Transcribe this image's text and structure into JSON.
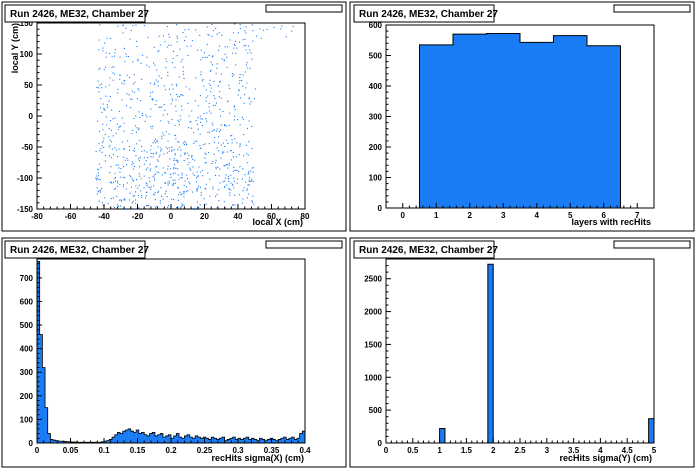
{
  "colors": {
    "fill": "#1a7cf5",
    "stroke": "#000000",
    "background": "#ffffff",
    "scatter": "#1a7cf5"
  },
  "chart_data": [
    {
      "type": "scatter",
      "title": "Run 2426, ME32, Chamber 27",
      "xlabel": "local X (cm)",
      "ylabel": "local Y (cm)",
      "xlim": [
        -80,
        80
      ],
      "ylim": [
        -150,
        150
      ],
      "xticks": [
        -80,
        -60,
        -40,
        -20,
        0,
        20,
        40,
        60,
        80
      ],
      "yticks": [
        -150,
        -100,
        -50,
        0,
        50,
        100,
        150
      ],
      "density_note": "points concentrated between x=-45 and x=50, denser at y<-50"
    },
    {
      "type": "bar",
      "title": "Run 2426, ME32, Chamber 27",
      "xlabel": "layers with recHits",
      "xlim": [
        -0.5,
        7.5
      ],
      "ylim": [
        0,
        600
      ],
      "xticks": [
        0,
        1,
        2,
        3,
        4,
        5,
        6,
        7
      ],
      "yticks": [
        0,
        100,
        200,
        300,
        400,
        500,
        600
      ],
      "bin_width": 1,
      "x": [
        1,
        2,
        3,
        4,
        5,
        6
      ],
      "values": [
        535,
        570,
        572,
        543,
        565,
        532
      ]
    },
    {
      "type": "bar",
      "title": "Run 2426, ME32, Chamber 27",
      "xlabel": "recHits sigma(X) (cm)",
      "xlim": [
        0,
        0.4
      ],
      "ylim": [
        0,
        780
      ],
      "xticks": [
        0,
        0.05,
        0.1,
        0.15,
        0.2,
        0.25,
        0.3,
        0.35,
        0.4
      ],
      "xtick_labels": [
        "0",
        "0.05",
        "0.1",
        "0.15",
        "0.2",
        "0.25",
        "0.3",
        "0.35",
        "0.4"
      ],
      "yticks": [
        0,
        100,
        200,
        300,
        400,
        500,
        600,
        700
      ],
      "bin_width": 0.004,
      "values": [
        770,
        460,
        320,
        150,
        40,
        15,
        12,
        10,
        8,
        8,
        6,
        5,
        5,
        4,
        4,
        3,
        3,
        3,
        3,
        3,
        3,
        3,
        3,
        3,
        5,
        8,
        10,
        15,
        25,
        35,
        45,
        40,
        50,
        55,
        60,
        50,
        45,
        55,
        40,
        45,
        35,
        30,
        40,
        45,
        30,
        35,
        40,
        25,
        30,
        35,
        20,
        30,
        40,
        25,
        20,
        30,
        35,
        25,
        20,
        30,
        25,
        20,
        25,
        20,
        15,
        25,
        20,
        15,
        20,
        25,
        10,
        15,
        20,
        25,
        15,
        20,
        15,
        20,
        25,
        15,
        20,
        15,
        10,
        20,
        15,
        10,
        15,
        20,
        15,
        10,
        15,
        20,
        25,
        15,
        20,
        25,
        15,
        20,
        40,
        50
      ]
    },
    {
      "type": "bar",
      "title": "Run 2426, ME32, Chamber 27",
      "xlabel": "recHits sigma(Y) (cm)",
      "xlim": [
        0,
        5
      ],
      "ylim": [
        0,
        2800
      ],
      "xticks": [
        0,
        0.5,
        1,
        1.5,
        2,
        2.5,
        3,
        3.5,
        4,
        4.5,
        5
      ],
      "xtick_labels": [
        "0",
        "0.5",
        "1",
        "1.5",
        "2",
        "2.5",
        "3",
        "3.5",
        "4",
        "4.5",
        "5"
      ],
      "yticks": [
        0,
        500,
        1000,
        1500,
        2000,
        2500
      ],
      "bin_width": 0.1,
      "bins": [
        {
          "x0": 1.0,
          "x1": 1.1,
          "value": 220
        },
        {
          "x0": 1.9,
          "x1": 2.0,
          "value": 2720
        },
        {
          "x0": 4.9,
          "x1": 5.0,
          "value": 370
        }
      ]
    }
  ]
}
